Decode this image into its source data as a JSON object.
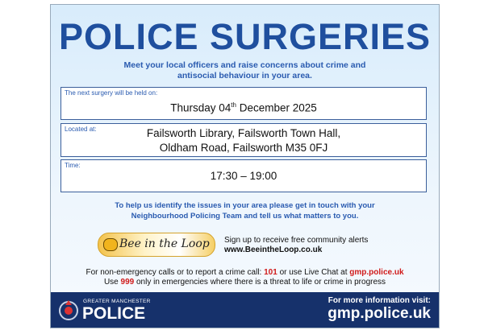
{
  "header": {
    "title": "POLICE SURGERIES",
    "subtitle": [
      "Meet your local officers and raise concerns about crime and",
      "antisocial behaviour in your area."
    ]
  },
  "boxes": [
    {
      "label": "The next surgery will be held on:",
      "date": {
        "day": "Thursday 04",
        "suffix": "th",
        "rest": "December 2025"
      }
    },
    {
      "label": "Located at:",
      "lines": [
        "Failsworth Library, Failsworth Town Hall,",
        "Oldham Road, Failsworth M35 0FJ"
      ]
    },
    {
      "label": "Time:",
      "lines": [
        "17:30 – 19:00"
      ]
    }
  ],
  "contact_prompt": [
    "To help us identify the issues in your area please get in touch with your",
    "Neighbourhood Policing Team and tell us what matters to you."
  ],
  "bee": {
    "logo": "Bee in the Loop",
    "signup": "Sign up to receive free community alerts",
    "url": "www.BeeintheLoop.co.uk"
  },
  "calls": {
    "line1": [
      "For non-emergency calls or to report a crime call:",
      "101",
      "or use Live Chat at",
      "gmp.police.uk"
    ],
    "line2": [
      "Use",
      "999",
      "only in emergencies where there is a threat to life or crime in progress"
    ]
  },
  "footer": {
    "force_region": "GREATER MANCHESTER",
    "force_name": "POLICE",
    "info": "For more information visit:",
    "website": "gmp.police.uk"
  }
}
